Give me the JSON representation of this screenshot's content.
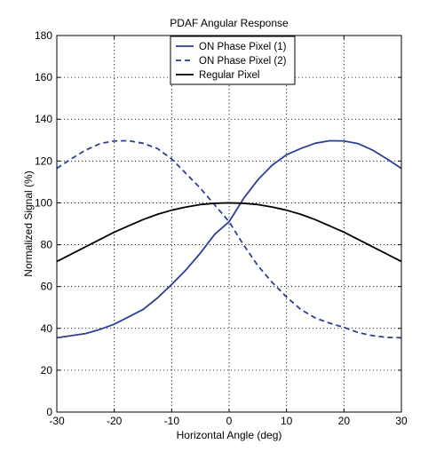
{
  "chart_data": {
    "type": "line",
    "title": "PDAF Angular Response",
    "xlabel": "Horizontal Angle (deg)",
    "ylabel": "Normalized Signal (%)",
    "xlim": [
      -30,
      30
    ],
    "ylim": [
      0,
      180
    ],
    "xticks": [
      -30,
      -20,
      -10,
      0,
      10,
      20,
      30
    ],
    "yticks": [
      0,
      20,
      40,
      60,
      80,
      100,
      120,
      140,
      160,
      180
    ],
    "grid": true,
    "legend_position": "top-center",
    "series": [
      {
        "name": "ON Phase Pixel (1)",
        "color": "#2e3f95",
        "linestyle": "solid",
        "x": [
          -30,
          -27.5,
          -25,
          -22.5,
          -20,
          -17.5,
          -15,
          -12.5,
          -10,
          -7.5,
          -5,
          -2.5,
          0,
          2.5,
          5,
          7.5,
          10,
          12.5,
          15,
          17.5,
          20,
          22.5,
          25,
          27.5,
          30
        ],
        "y": [
          35.5,
          36.5,
          37.5,
          39.5,
          42,
          45.5,
          49,
          54.5,
          61,
          68,
          76,
          85,
          91,
          102,
          111,
          118,
          123,
          126,
          128.5,
          129.7,
          129.6,
          128.3,
          125.2,
          121,
          116.5
        ]
      },
      {
        "name": "ON Phase Pixel (2)",
        "color": "#2e3f95",
        "linestyle": "dashed",
        "x": [
          -30,
          -27.5,
          -25,
          -22.5,
          -20,
          -17.5,
          -15,
          -12.5,
          -10,
          -7.5,
          -5,
          -2.5,
          0,
          2.5,
          5,
          7.5,
          10,
          12.5,
          15,
          17.5,
          20,
          22.5,
          25,
          27.5,
          30
        ],
        "y": [
          116.5,
          121,
          125.2,
          128.3,
          129.6,
          129.7,
          128.5,
          126,
          121,
          114,
          107,
          99,
          91,
          80,
          70,
          62,
          55,
          49,
          45,
          42.5,
          40.5,
          38,
          36.5,
          35.7,
          35.5
        ]
      },
      {
        "name": "Regular Pixel",
        "color": "#000000",
        "linestyle": "solid",
        "x": [
          -30,
          -27.5,
          -25,
          -22.5,
          -20,
          -17.5,
          -15,
          -12.5,
          -10,
          -7.5,
          -5,
          -2.5,
          0,
          2.5,
          5,
          7.5,
          10,
          12.5,
          15,
          17.5,
          20,
          22.5,
          25,
          27.5,
          30
        ],
        "y": [
          72,
          75.5,
          79,
          82.5,
          86,
          89,
          92,
          94.5,
          96.5,
          98,
          99.2,
          99.8,
          100,
          99.8,
          99.2,
          98,
          96.5,
          94.5,
          92,
          89,
          86,
          82.5,
          79,
          75.5,
          72
        ]
      }
    ]
  }
}
